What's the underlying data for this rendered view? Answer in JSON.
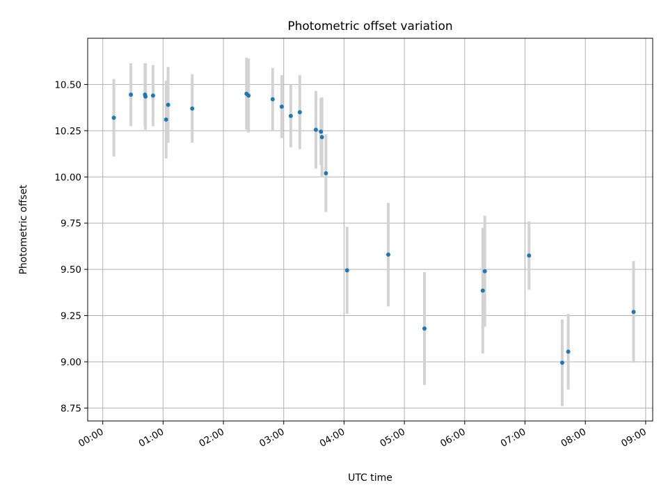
{
  "chart_data": {
    "type": "scatter",
    "title": "Photometric offset variation",
    "xlabel": "UTC time",
    "ylabel": "Photometric offset",
    "x_unit": "minutes since 00:00 UTC",
    "xlim": [
      -15,
      547
    ],
    "ylim": [
      8.68,
      10.75
    ],
    "grid": true,
    "x_ticks": [
      {
        "value": 0,
        "label": "00:00"
      },
      {
        "value": 60,
        "label": "01:00"
      },
      {
        "value": 120,
        "label": "02:00"
      },
      {
        "value": 180,
        "label": "03:00"
      },
      {
        "value": 240,
        "label": "04:00"
      },
      {
        "value": 300,
        "label": "05:00"
      },
      {
        "value": 360,
        "label": "06:00"
      },
      {
        "value": 420,
        "label": "07:00"
      },
      {
        "value": 480,
        "label": "08:00"
      },
      {
        "value": 540,
        "label": "09:00"
      }
    ],
    "y_ticks": [
      {
        "value": 8.75,
        "label": "8.75"
      },
      {
        "value": 9.0,
        "label": "9.00"
      },
      {
        "value": 9.25,
        "label": "9.25"
      },
      {
        "value": 9.5,
        "label": "9.50"
      },
      {
        "value": 9.75,
        "label": "9.75"
      },
      {
        "value": 10.0,
        "label": "10.00"
      },
      {
        "value": 10.25,
        "label": "10.25"
      },
      {
        "value": 10.5,
        "label": "10.50"
      }
    ],
    "marker_color": "#1f77b4",
    "errorbar_color": "#d3d3d3",
    "points": [
      {
        "x": 11,
        "y": 10.32,
        "err": 0.21
      },
      {
        "x": 28,
        "y": 10.445,
        "err": 0.17
      },
      {
        "x": 42,
        "y": 10.445,
        "err": 0.17
      },
      {
        "x": 42.5,
        "y": 10.435,
        "err": 0.18
      },
      {
        "x": 50,
        "y": 10.44,
        "err": 0.165
      },
      {
        "x": 63,
        "y": 10.31,
        "err": 0.21
      },
      {
        "x": 65,
        "y": 10.39,
        "err": 0.205
      },
      {
        "x": 89,
        "y": 10.37,
        "err": 0.185
      },
      {
        "x": 143,
        "y": 10.45,
        "err": 0.195
      },
      {
        "x": 145,
        "y": 10.44,
        "err": 0.2
      },
      {
        "x": 169,
        "y": 10.42,
        "err": 0.17
      },
      {
        "x": 178,
        "y": 10.38,
        "err": 0.17
      },
      {
        "x": 187,
        "y": 10.33,
        "err": 0.17
      },
      {
        "x": 196,
        "y": 10.35,
        "err": 0.2
      },
      {
        "x": 212,
        "y": 10.255,
        "err": 0.21
      },
      {
        "x": 217,
        "y": 10.245,
        "err": 0.18
      },
      {
        "x": 218,
        "y": 10.215,
        "err": 0.215
      },
      {
        "x": 222,
        "y": 10.02,
        "err": 0.21
      },
      {
        "x": 243,
        "y": 9.495,
        "err": 0.235
      },
      {
        "x": 284,
        "y": 9.58,
        "err": 0.28
      },
      {
        "x": 320,
        "y": 9.18,
        "err": 0.305
      },
      {
        "x": 378,
        "y": 9.385,
        "err": 0.34
      },
      {
        "x": 380,
        "y": 9.49,
        "err": 0.3
      },
      {
        "x": 424,
        "y": 9.575,
        "err": 0.185
      },
      {
        "x": 457,
        "y": 8.995,
        "err": 0.235
      },
      {
        "x": 463,
        "y": 9.055,
        "err": 0.205
      },
      {
        "x": 528,
        "y": 9.27,
        "err": 0.275
      }
    ]
  }
}
